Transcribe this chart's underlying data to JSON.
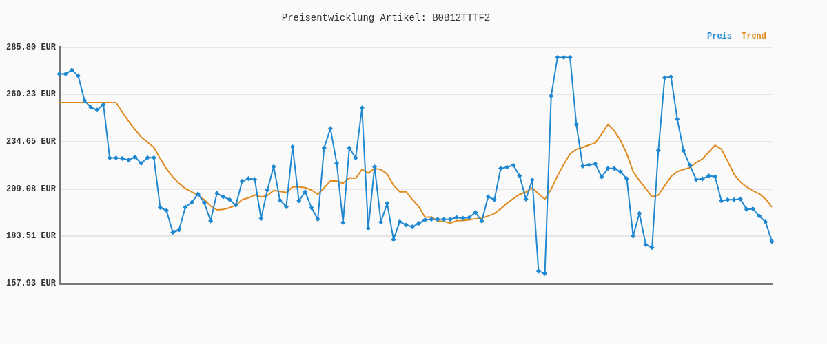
{
  "chart_data": {
    "type": "line",
    "title": "Preisentwicklung Artikel: B0B12TTTF2",
    "categories": [
      null,
      null,
      null,
      null,
      null,
      null,
      null,
      null,
      null,
      null,
      null,
      null,
      null,
      null,
      null,
      null,
      null,
      null,
      null,
      null,
      null,
      null,
      null,
      null,
      null,
      null,
      null,
      null,
      null,
      null,
      null,
      null,
      null,
      null,
      null,
      null,
      null,
      null,
      null,
      null,
      null,
      null,
      null,
      null,
      null,
      null,
      null,
      null,
      null,
      null,
      null,
      null,
      null,
      null,
      null,
      null,
      null,
      null,
      null,
      null,
      null,
      null,
      null,
      null,
      null,
      null,
      null,
      null,
      null,
      null,
      null,
      null,
      null,
      null,
      null,
      null,
      null,
      null,
      null,
      null,
      null,
      null,
      null,
      null,
      null,
      null,
      null,
      null,
      null,
      null,
      null,
      null,
      null,
      null,
      null,
      null,
      null,
      null,
      null,
      null,
      null,
      null,
      null,
      null,
      null,
      null,
      null,
      null,
      null,
      null,
      null,
      null,
      null,
      null
    ],
    "series": [
      {
        "name": "Preis",
        "color": "#1f88d0",
        "marker": "diamond",
        "values": [
          271.4,
          271.4,
          273.5,
          270.4,
          257.1,
          253.3,
          251.9,
          254.8,
          225.9,
          225.9,
          225.6,
          224.7,
          226.4,
          223.0,
          226.0,
          226.0,
          199.1,
          197.4,
          185.6,
          187.0,
          199.3,
          201.8,
          206.4,
          201.6,
          191.8,
          206.8,
          204.9,
          203.4,
          200.3,
          213.3,
          214.7,
          214.3,
          193.0,
          208.6,
          221.2,
          203.0,
          199.5,
          231.9,
          202.7,
          207.6,
          198.9,
          192.8,
          231.3,
          241.8,
          223.0,
          190.9,
          231.3,
          225.9,
          253.0,
          187.8,
          221.1,
          191.2,
          201.4,
          181.7,
          191.4,
          189.6,
          188.6,
          190.5,
          192.4,
          192.7,
          192.7,
          192.7,
          192.7,
          193.7,
          193.3,
          193.7,
          196.4,
          191.7,
          204.9,
          203.3,
          220.2,
          220.9,
          221.9,
          216.2,
          203.6,
          214.0,
          164.6,
          163.4,
          259.5,
          280.3,
          280.3,
          280.3,
          244.0,
          221.5,
          222.1,
          222.7,
          215.6,
          220.2,
          220.2,
          218.4,
          214.6,
          183.6,
          195.9,
          179.0,
          177.4,
          230.0,
          269.3,
          269.9,
          246.9,
          229.8,
          221.9,
          214.2,
          214.6,
          216.2,
          215.8,
          202.7,
          203.3,
          203.3,
          203.7,
          198.1,
          198.4,
          194.5,
          191.3,
          180.7
        ]
      },
      {
        "name": "Trend",
        "color": "#e08a1e",
        "marker": "none",
        "values": [
          255.9,
          255.9,
          255.9,
          255.9,
          255.9,
          255.9,
          255.9,
          255.9,
          255.9,
          255.9,
          250.7,
          245.7,
          241.3,
          237.2,
          234.4,
          231.6,
          225.6,
          220.0,
          215.6,
          212.1,
          209.3,
          207.5,
          205.8,
          203.3,
          199.9,
          197.8,
          198.1,
          198.9,
          200.3,
          203.3,
          204.3,
          205.8,
          204.8,
          205.6,
          208.3,
          207.8,
          207.2,
          210.2,
          210.3,
          209.8,
          208.5,
          206.2,
          209.7,
          213.4,
          213.4,
          212.1,
          215.1,
          214.9,
          219.7,
          217.7,
          220.2,
          219.6,
          217.2,
          211.1,
          207.6,
          207.6,
          203.3,
          199.6,
          193.8,
          194.0,
          191.8,
          191.5,
          190.6,
          191.9,
          192.0,
          192.4,
          193.0,
          193.3,
          194.5,
          195.8,
          198.4,
          201.4,
          203.9,
          206.2,
          207.5,
          209.6,
          206.5,
          203.6,
          209.0,
          216.2,
          222.5,
          228.1,
          230.6,
          231.6,
          232.9,
          234.0,
          238.8,
          244.2,
          240.7,
          235.4,
          228.1,
          218.4,
          213.7,
          209.3,
          204.9,
          205.8,
          210.8,
          215.8,
          218.5,
          219.7,
          220.6,
          223.4,
          225.4,
          229.1,
          232.8,
          230.6,
          224.1,
          217.1,
          212.9,
          210.2,
          208.1,
          206.5,
          203.7,
          199.3
        ]
      }
    ],
    "ylim": [
      157.93,
      285.8
    ],
    "yticks": [
      {
        "value": 157.93,
        "label": "157.93 EUR"
      },
      {
        "value": 183.51,
        "label": "183.51 EUR"
      },
      {
        "value": 209.08,
        "label": "209.08 EUR"
      },
      {
        "value": 234.65,
        "label": "234.65 EUR"
      },
      {
        "value": 260.23,
        "label": "260.23 EUR"
      },
      {
        "value": 285.8,
        "label": "285.80 EUR"
      }
    ],
    "tick_labels": "y",
    "grid": "y",
    "legend": "top right"
  }
}
